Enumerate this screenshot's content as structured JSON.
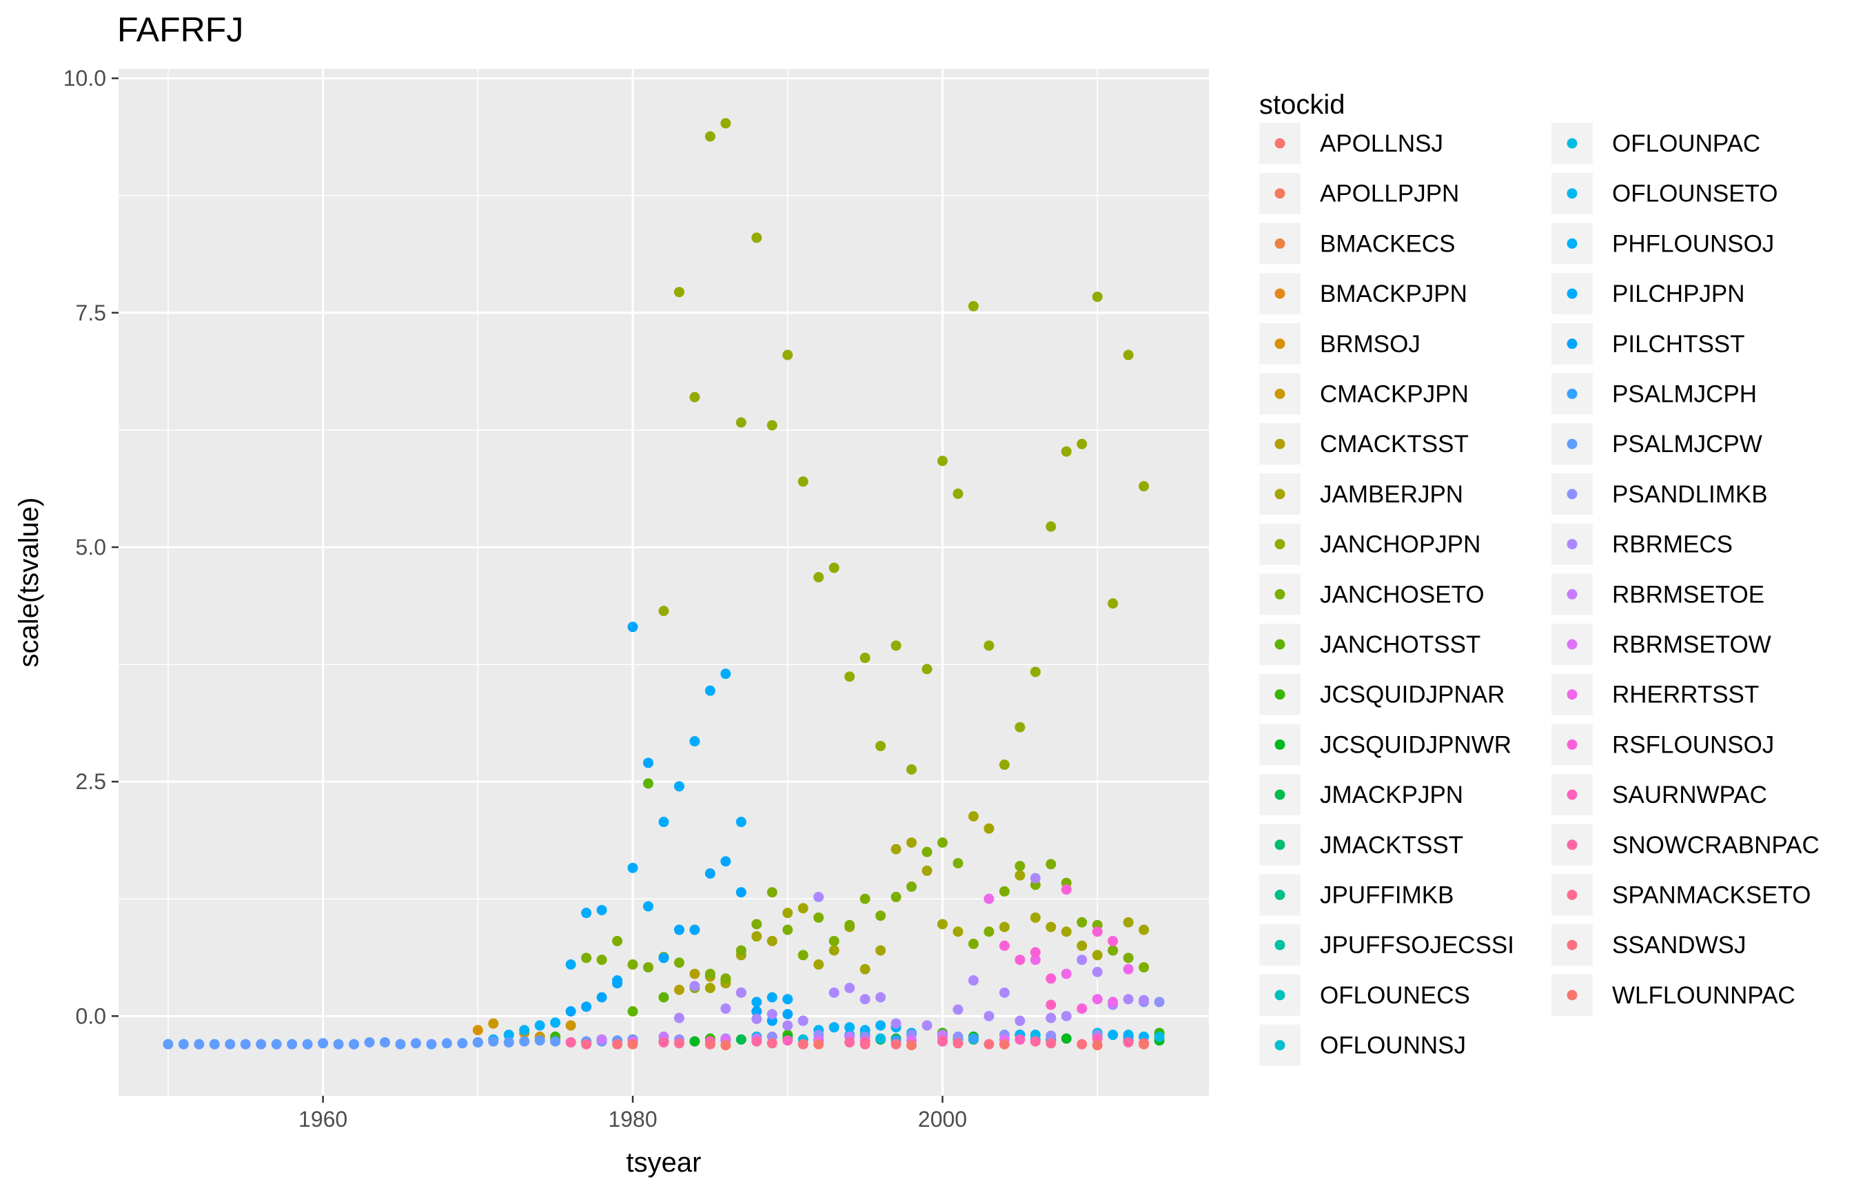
{
  "chart_data": {
    "type": "scatter",
    "title": "FAFRFJ",
    "xlabel": "tsyear",
    "ylabel": "scale(tsvalue)",
    "xlim": [
      1946.8,
      2017.2
    ],
    "ylim": [
      -0.85,
      10.1
    ],
    "x_ticks": [
      1960,
      1980,
      2000
    ],
    "x_tick_labels": [
      "1960",
      "1980",
      "2000"
    ],
    "y_ticks": [
      0,
      2.5,
      5,
      7.5,
      10
    ],
    "y_tick_labels": [
      "0.0",
      "2.5",
      "5.0",
      "7.5",
      "10.0"
    ],
    "grid": true,
    "legend": {
      "title": "stockid",
      "position": "right",
      "columns": 2
    },
    "series": [
      {
        "name": "APOLLNSJ",
        "color": "#F8766D",
        "x": [],
        "y": []
      },
      {
        "name": "APOLLPJPN",
        "color": "#F47B5B",
        "x": [],
        "y": []
      },
      {
        "name": "BMACKECS",
        "color": "#EC8240",
        "x": [],
        "y": []
      },
      {
        "name": "BMACKPJPN",
        "color": "#E3891A",
        "x": [],
        "y": []
      },
      {
        "name": "BRMSOJ",
        "color": "#D89000",
        "x": [
          1970
        ],
        "y": [
          -0.15
        ]
      },
      {
        "name": "CMACKPJPN",
        "color": "#CA9700",
        "x": [
          1971,
          1972,
          1973,
          1974,
          1975,
          1976
        ],
        "y": [
          -0.08,
          -0.2,
          -0.18,
          -0.22,
          -0.25,
          -0.1
        ]
      },
      {
        "name": "CMACKTSST",
        "color": "#B59F00",
        "x": [
          1983,
          1984,
          1985,
          1986,
          1987,
          1988
        ],
        "y": [
          0.28,
          0.45,
          0.42,
          0.38,
          0.25,
          0.05
        ]
      },
      {
        "name": "JAMBERJPN",
        "color": "#A3A500",
        "x": [
          1985,
          1986,
          1987,
          1988,
          1989,
          1990,
          1991,
          1992,
          1993,
          1994,
          1995,
          1996,
          1997,
          1998,
          1999,
          2000,
          2001,
          2002,
          2003,
          2004,
          2005,
          2006,
          2007,
          2008,
          2009,
          2010,
          2011,
          2012,
          2013
        ],
        "y": [
          0.3,
          0.35,
          0.65,
          0.85,
          0.8,
          1.1,
          1.15,
          0.55,
          0.7,
          0.95,
          0.5,
          0.7,
          1.78,
          1.85,
          1.55,
          0.98,
          0.9,
          2.13,
          2.0,
          0.95,
          1.5,
          1.05,
          0.95,
          0.9,
          0.75,
          0.65,
          0.7,
          1.0,
          0.92
        ]
      },
      {
        "name": "JANCHOPJPN",
        "color": "#93AA00",
        "x": [
          1982,
          1983,
          1984,
          1985,
          1986,
          1987,
          1988,
          1989,
          1990,
          1991,
          1992,
          1993,
          1994,
          1995,
          1996,
          1997,
          1998,
          1999,
          2000,
          2001,
          2002,
          2003,
          2004,
          2005,
          2006,
          2007,
          2008,
          2009,
          2010,
          2011,
          2012,
          2013
        ],
        "y": [
          4.32,
          7.72,
          6.6,
          9.38,
          9.52,
          6.33,
          8.3,
          6.3,
          7.05,
          5.7,
          4.68,
          4.78,
          3.62,
          3.82,
          2.88,
          3.95,
          2.63,
          3.7,
          5.92,
          5.57,
          7.57,
          3.95,
          2.68,
          3.08,
          3.67,
          5.22,
          6.02,
          6.1,
          7.67,
          4.4,
          7.05,
          5.65
        ]
      },
      {
        "name": "JANCHOSETO",
        "color": "#7CAE00",
        "x": [
          1977,
          1978,
          1979,
          1980,
          1981,
          1982,
          1983,
          1984,
          1985,
          1986,
          1987,
          1988,
          1989,
          1990,
          1991,
          1992,
          1993,
          1994,
          1995,
          1996,
          1997,
          1998,
          1999,
          2000,
          2001,
          2002,
          2003,
          2004,
          2005,
          2006,
          2007,
          2008,
          2009,
          2010,
          2011,
          2012,
          2013
        ],
        "y": [
          0.62,
          0.6,
          0.8,
          0.55,
          0.52,
          0.63,
          0.57,
          0.3,
          0.45,
          0.4,
          0.7,
          0.98,
          1.32,
          0.92,
          0.65,
          1.05,
          0.8,
          0.97,
          1.25,
          1.07,
          1.27,
          1.38,
          1.75,
          1.85,
          1.63,
          0.77,
          0.9,
          1.33,
          1.6,
          1.4,
          1.62,
          1.42,
          1.0,
          0.97,
          0.7,
          0.62,
          0.52
        ]
      },
      {
        "name": "JANCHOTSST",
        "color": "#5EB300",
        "x": [
          1980,
          1981,
          1982
        ],
        "y": [
          0.05,
          2.48,
          0.2
        ]
      },
      {
        "name": "JCSQUIDJPNAR",
        "color": "#39B600",
        "x": [
          1975,
          1980,
          1985,
          1990,
          1995,
          2000,
          2005,
          2010,
          2014
        ],
        "y": [
          -0.22,
          -0.25,
          -0.24,
          -0.2,
          -0.2,
          -0.18,
          -0.2,
          -0.2,
          -0.18
        ]
      },
      {
        "name": "JCSQUIDJPNWR",
        "color": "#00B81F",
        "x": [
          1978,
          1984,
          1990,
          1996,
          2002,
          2008,
          2014
        ],
        "y": [
          -0.25,
          -0.27,
          -0.24,
          -0.25,
          -0.22,
          -0.24,
          -0.26
        ]
      },
      {
        "name": "JMACKPJPN",
        "color": "#00BB4E",
        "x": [
          1977,
          1987,
          1997,
          2007
        ],
        "y": [
          -0.28,
          -0.25,
          -0.24,
          -0.26
        ]
      },
      {
        "name": "JMACKTSST",
        "color": "#00BD6E",
        "x": [
          1982,
          1992,
          2002,
          2012
        ],
        "y": [
          -0.27,
          -0.26,
          -0.25,
          -0.26
        ]
      },
      {
        "name": "JPUFFIMKB",
        "color": "#00BF8A",
        "x": [],
        "y": []
      },
      {
        "name": "JPUFFSOJECSSI",
        "color": "#00C0A3",
        "x": [],
        "y": []
      },
      {
        "name": "OFLOUNECS",
        "color": "#00C0BA",
        "x": [],
        "y": []
      },
      {
        "name": "OFLOUNNSJ",
        "color": "#00BFCF",
        "x": [],
        "y": []
      },
      {
        "name": "OFLOUNPAC",
        "color": "#00BCE0",
        "x": [
          1986,
          1991,
          1996,
          2001,
          2006,
          2010,
          2014
        ],
        "y": [
          -0.26,
          -0.25,
          -0.24,
          -0.25,
          -0.25,
          -0.18,
          -0.22
        ]
      },
      {
        "name": "OFLOUNSETO",
        "color": "#00B8EE",
        "x": [
          1988,
          1994,
          2000,
          2006,
          2012
        ],
        "y": [
          -0.22,
          -0.2,
          -0.21,
          -0.2,
          -0.2
        ]
      },
      {
        "name": "PHFLOUNSOJ",
        "color": "#00B2F9",
        "x": [
          1970,
          1971,
          1972,
          1973,
          1974,
          1975,
          1992,
          1993,
          1994,
          1995,
          1996,
          1997,
          1998,
          2000,
          2005,
          2011,
          2012,
          2013
        ],
        "y": [
          -0.28,
          -0.25,
          -0.2,
          -0.15,
          -0.1,
          -0.07,
          -0.15,
          -0.12,
          -0.12,
          -0.15,
          -0.1,
          -0.12,
          -0.18,
          -0.2,
          -0.2,
          -0.2,
          -0.22,
          -0.22
        ]
      },
      {
        "name": "PILCHPJPN",
        "color": "#00ABFD",
        "x": [
          1976,
          1977,
          1978,
          1979,
          1980,
          1981,
          1982,
          1983,
          1984,
          1985,
          1986,
          1987,
          1988,
          1989,
          1990,
          1991
        ],
        "y": [
          0.55,
          1.1,
          1.13,
          0.38,
          1.58,
          1.17,
          2.07,
          2.45,
          2.93,
          3.47,
          3.65,
          2.07,
          0.15,
          0.2,
          0.18,
          -0.05
        ]
      },
      {
        "name": "PILCHTSST",
        "color": "#00A5FF",
        "x": [
          1976,
          1977,
          1978,
          1979,
          1980,
          1981,
          1982,
          1983,
          1984,
          1985,
          1986,
          1987,
          1988,
          1989,
          1990
        ],
        "y": [
          0.05,
          0.1,
          0.2,
          0.35,
          4.15,
          2.7,
          0.62,
          0.92,
          0.92,
          1.52,
          1.65,
          1.32,
          0.05,
          -0.05,
          0.02
        ]
      },
      {
        "name": "PSALMJCPH",
        "color": "#35A2FF",
        "x": [
          1992,
          1997,
          2002,
          2007
        ],
        "y": [
          -0.25,
          -0.26,
          -0.24,
          -0.25
        ]
      },
      {
        "name": "PSALMJCPW",
        "color": "#619CFF",
        "x": [
          1950,
          1951,
          1952,
          1953,
          1954,
          1955,
          1956,
          1957,
          1958,
          1959,
          1960,
          1961,
          1962,
          1963,
          1964,
          1965,
          1966,
          1967,
          1968,
          1969,
          1970,
          1971,
          1972,
          1973,
          1974,
          1975,
          1976,
          1977,
          1978,
          1979,
          1980
        ],
        "y": [
          -0.3,
          -0.3,
          -0.3,
          -0.3,
          -0.3,
          -0.3,
          -0.3,
          -0.3,
          -0.3,
          -0.3,
          -0.29,
          -0.3,
          -0.3,
          -0.28,
          -0.28,
          -0.3,
          -0.29,
          -0.3,
          -0.29,
          -0.29,
          -0.28,
          -0.27,
          -0.28,
          -0.27,
          -0.26,
          -0.27,
          -0.28,
          -0.27,
          -0.27,
          -0.26,
          -0.25
        ]
      },
      {
        "name": "PSANDLIMKB",
        "color": "#8F91FF",
        "x": [
          1983,
          1986,
          1989,
          1992,
          1995,
          1998,
          2001,
          2004,
          2007,
          2010,
          2013,
          2014
        ],
        "y": [
          -0.25,
          -0.24,
          -0.22,
          -0.2,
          -0.22,
          -0.2,
          -0.22,
          -0.2,
          -0.21,
          -0.2,
          0.15,
          0.15
        ]
      },
      {
        "name": "RBRMECS",
        "color": "#AC88FF",
        "x": [
          1983,
          1984,
          1986,
          1987,
          1988,
          1989,
          1990,
          1991,
          1992,
          1993,
          1994,
          1995,
          1996,
          1997,
          1999,
          2001,
          2002,
          2003,
          2004,
          2005,
          2006,
          2007,
          2008,
          2009,
          2010,
          2011,
          2012,
          2013
        ],
        "y": [
          -0.02,
          0.32,
          0.08,
          0.25,
          -0.03,
          0.02,
          -0.1,
          -0.05,
          1.27,
          0.25,
          0.3,
          0.18,
          0.2,
          -0.08,
          -0.1,
          0.07,
          0.38,
          0.0,
          0.25,
          -0.05,
          1.47,
          -0.02,
          0.0,
          0.6,
          0.47,
          0.12,
          0.18,
          0.17
        ]
      },
      {
        "name": "RBRMSETOE",
        "color": "#C77CFF",
        "x": [
          1978,
          1982,
          1988,
          1994,
          2000
        ],
        "y": [
          -0.25,
          -0.22,
          -0.24,
          -0.22,
          -0.2
        ]
      },
      {
        "name": "RBRMSETOW",
        "color": "#DE71F9",
        "x": [
          1980,
          1986,
          1992,
          1998,
          2004
        ],
        "y": [
          -0.27,
          -0.25,
          -0.26,
          -0.26,
          -0.25
        ]
      },
      {
        "name": "RHERRTSST",
        "color": "#EF67EB",
        "x": [
          2003,
          2006,
          2008,
          2010,
          2011,
          2012
        ],
        "y": [
          1.25,
          0.6,
          0.45,
          0.18,
          0.15,
          0.5
        ]
      },
      {
        "name": "RSFLOUNSOJ",
        "color": "#FB61D7",
        "x": [
          2004,
          2005,
          2006,
          2007,
          2008,
          2009,
          2010,
          2011
        ],
        "y": [
          0.75,
          0.6,
          0.68,
          0.4,
          1.35,
          0.08,
          0.9,
          0.8
        ]
      },
      {
        "name": "SAURNWPAC",
        "color": "#FF62BC",
        "x": [
          1985,
          1990,
          1995,
          2000,
          2005,
          2007,
          2010
        ],
        "y": [
          -0.27,
          -0.26,
          -0.27,
          -0.26,
          -0.25,
          0.12,
          -0.24
        ]
      },
      {
        "name": "SNOWCRABNPAC",
        "color": "#FF67A4",
        "x": [
          1976,
          1982,
          1988,
          1994,
          2000,
          2006,
          2012
        ],
        "y": [
          -0.28,
          -0.28,
          -0.27,
          -0.28,
          -0.27,
          -0.27,
          -0.28
        ]
      },
      {
        "name": "SPANMACKSETO",
        "color": "#FF6C91",
        "x": [
          1977,
          1983,
          1989,
          1995,
          2001,
          2007,
          2013
        ],
        "y": [
          -0.3,
          -0.29,
          -0.29,
          -0.3,
          -0.29,
          -0.29,
          -0.29
        ]
      },
      {
        "name": "SSANDWSJ",
        "color": "#FC717F",
        "x": [
          1979,
          1985,
          1991,
          1997,
          2003,
          2009
        ],
        "y": [
          -0.3,
          -0.3,
          -0.3,
          -0.3,
          -0.3,
          -0.3
        ]
      },
      {
        "name": "WLFLOUNNPAC",
        "color": "#F8766D",
        "x": [
          1980,
          1986,
          1992,
          1998,
          2004,
          2010,
          2013
        ],
        "y": [
          -0.3,
          -0.31,
          -0.3,
          -0.31,
          -0.3,
          -0.31,
          -0.3
        ]
      }
    ]
  }
}
